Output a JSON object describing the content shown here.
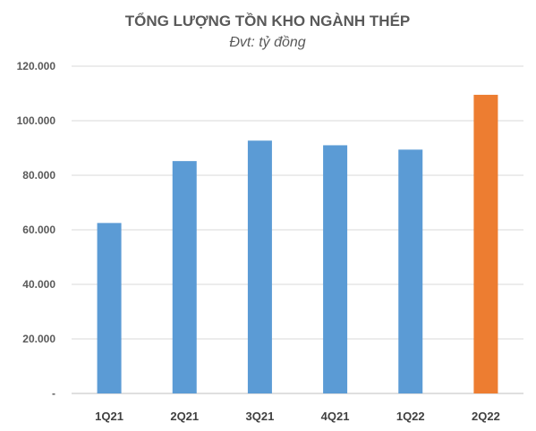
{
  "chart_data": {
    "type": "bar",
    "title": "TỔNG LƯỢNG TỒN KHO NGÀNH THÉP",
    "subtitle": "Đvt: tỷ đồng",
    "categories": [
      "1Q21",
      "2Q21",
      "3Q21",
      "4Q21",
      "1Q22",
      "2Q22"
    ],
    "values": [
      62500,
      85200,
      92700,
      91000,
      89400,
      109500
    ],
    "ylim": [
      0,
      120000
    ],
    "yticks": [
      0,
      20000,
      40000,
      60000,
      80000,
      100000,
      120000
    ],
    "ytick_labels": [
      "-",
      "20.000",
      "40.000",
      "60.000",
      "80.000",
      "100.000",
      "120.000"
    ],
    "grid": true,
    "colors": [
      "#5b9bd5",
      "#5b9bd5",
      "#5b9bd5",
      "#5b9bd5",
      "#5b9bd5",
      "#ed7d31"
    ]
  }
}
